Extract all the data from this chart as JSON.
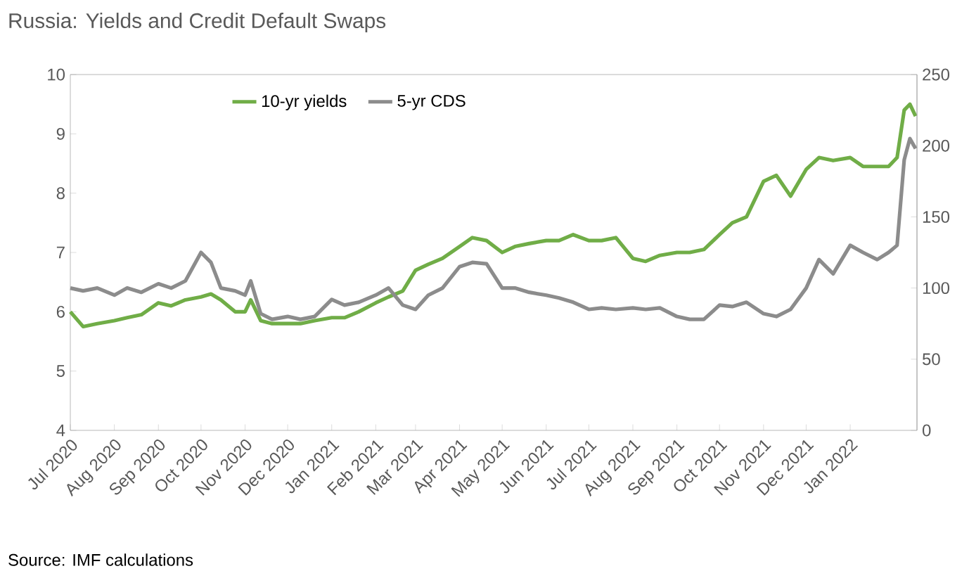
{
  "chart_data": {
    "type": "line",
    "title": "Russia: Yields and Credit Default Swaps",
    "x": [
      "2020-07-01",
      "2020-07-10",
      "2020-07-20",
      "2020-08-01",
      "2020-08-10",
      "2020-08-20",
      "2020-09-01",
      "2020-09-10",
      "2020-09-20",
      "2020-10-01",
      "2020-10-08",
      "2020-10-15",
      "2020-10-25",
      "2020-11-01",
      "2020-11-05",
      "2020-11-12",
      "2020-11-20",
      "2020-12-01",
      "2020-12-10",
      "2020-12-20",
      "2021-01-01",
      "2021-01-10",
      "2021-01-20",
      "2021-02-01",
      "2021-02-10",
      "2021-02-20",
      "2021-03-01",
      "2021-03-10",
      "2021-03-20",
      "2021-04-01",
      "2021-04-10",
      "2021-04-20",
      "2021-05-01",
      "2021-05-10",
      "2021-05-20",
      "2021-06-01",
      "2021-06-10",
      "2021-06-20",
      "2021-07-01",
      "2021-07-10",
      "2021-07-20",
      "2021-08-01",
      "2021-08-10",
      "2021-08-20",
      "2021-09-01",
      "2021-09-10",
      "2021-09-20",
      "2021-10-01",
      "2021-10-10",
      "2021-10-20",
      "2021-11-01",
      "2021-11-10",
      "2021-11-20",
      "2021-12-01",
      "2021-12-10",
      "2021-12-20",
      "2022-01-01",
      "2022-01-10",
      "2022-01-20",
      "2022-01-28",
      "2022-02-03",
      "2022-02-08",
      "2022-02-12",
      "2022-02-16"
    ],
    "series": [
      {
        "name": "10-yr yields",
        "color": "#70ad47",
        "values": [
          6.0,
          5.75,
          5.8,
          5.85,
          5.9,
          5.95,
          6.15,
          6.1,
          6.2,
          6.25,
          6.3,
          6.2,
          6.0,
          6.0,
          6.2,
          5.85,
          5.8,
          5.8,
          5.8,
          5.85,
          5.9,
          5.9,
          6.0,
          6.15,
          6.25,
          6.35,
          6.7,
          6.8,
          6.9,
          7.1,
          7.25,
          7.2,
          7.0,
          7.1,
          7.15,
          7.2,
          7.2,
          7.3,
          7.2,
          7.2,
          7.25,
          6.9,
          6.85,
          6.95,
          7.0,
          7.0,
          7.05,
          7.3,
          7.5,
          7.6,
          8.2,
          8.3,
          7.95,
          8.4,
          8.6,
          8.55,
          8.6,
          8.45,
          8.45,
          8.45,
          8.6,
          9.4,
          9.5,
          9.3
        ]
      },
      {
        "name": "5-yr CDS",
        "color": "#8c8c8c",
        "axis": "y2",
        "values": [
          100,
          98,
          100,
          95,
          100,
          97,
          103,
          100,
          105,
          125,
          118,
          100,
          98,
          95,
          105,
          82,
          78,
          80,
          78,
          80,
          92,
          88,
          90,
          95,
          100,
          88,
          85,
          95,
          100,
          115,
          118,
          117,
          100,
          100,
          97,
          95,
          93,
          90,
          85,
          86,
          85,
          86,
          85,
          86,
          80,
          78,
          78,
          88,
          87,
          90,
          82,
          80,
          85,
          100,
          120,
          110,
          130,
          125,
          120,
          125,
          130,
          190,
          205,
          198
        ]
      }
    ],
    "xlim": [
      "2020-07-01",
      "2022-02-17"
    ],
    "xticks": [
      {
        "value": "2020-07-01",
        "label": "Jul 2020"
      },
      {
        "value": "2020-08-01",
        "label": "Aug 2020"
      },
      {
        "value": "2020-09-01",
        "label": "Sep 2020"
      },
      {
        "value": "2020-10-01",
        "label": "Oct 2020"
      },
      {
        "value": "2020-11-01",
        "label": "Nov 2020"
      },
      {
        "value": "2020-12-01",
        "label": "Dec 2020"
      },
      {
        "value": "2021-01-01",
        "label": "Jan 2021"
      },
      {
        "value": "2021-02-01",
        "label": "Feb 2021"
      },
      {
        "value": "2021-03-01",
        "label": "Mar 2021"
      },
      {
        "value": "2021-04-01",
        "label": "Apr 2021"
      },
      {
        "value": "2021-05-01",
        "label": "May 2021"
      },
      {
        "value": "2021-06-01",
        "label": "Jun 2021"
      },
      {
        "value": "2021-07-01",
        "label": "Jul 2021"
      },
      {
        "value": "2021-08-01",
        "label": "Aug 2021"
      },
      {
        "value": "2021-09-01",
        "label": "Sep 2021"
      },
      {
        "value": "2021-10-01",
        "label": "Oct 2021"
      },
      {
        "value": "2021-11-01",
        "label": "Nov 2021"
      },
      {
        "value": "2021-12-01",
        "label": "Dec 2021"
      },
      {
        "value": "2022-01-01",
        "label": "Jan 2022"
      }
    ],
    "ylim": [
      4,
      10
    ],
    "yticks": [
      4,
      5,
      6,
      7,
      8,
      9,
      10
    ],
    "y2lim": [
      0,
      250
    ],
    "y2ticks": [
      0,
      50,
      100,
      150,
      200,
      250
    ],
    "legend": "top",
    "grid": false,
    "marker": "none",
    "line_style": "solid",
    "annotations": [
      "Source: IMF calculations"
    ]
  }
}
